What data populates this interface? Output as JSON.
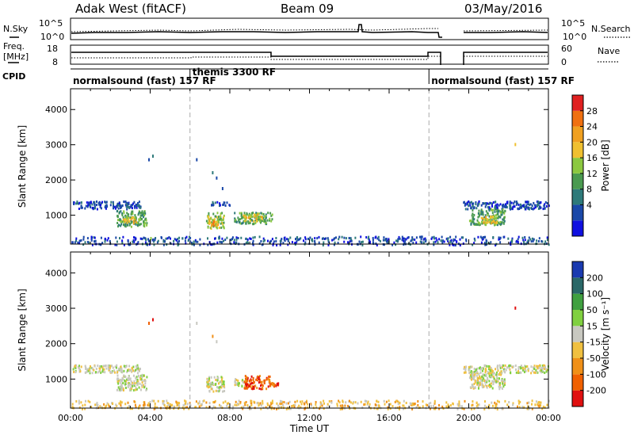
{
  "header": {
    "radar": "Adak West (fitACF)",
    "beam": "Beam 09",
    "date": "03/May/2016"
  },
  "top_panels": {
    "nsky_label": "N.Sky",
    "nsky_ticks": [
      "10^5",
      "10^0"
    ],
    "nsearch_label": "N.Search",
    "nsearch_ticks": [
      "10^5",
      "10^0"
    ],
    "freq_label_1": "Freq.",
    "freq_label_2": "[MHz]",
    "freq_ticks": [
      "18",
      "8"
    ],
    "nave_label": "Nave",
    "nave_ticks": [
      "60",
      "0"
    ],
    "cpid_label": "CPID",
    "cpid_modes": [
      {
        "label": "normalsound (fast) 157 RF",
        "start_h": 0,
        "end_h": 6
      },
      {
        "label": "themis 3300 RF",
        "start_h": 6,
        "end_h": 18
      },
      {
        "label": "normalsound (fast) 157 RF",
        "start_h": 18,
        "end_h": 24
      }
    ]
  },
  "chart_data": [
    {
      "type": "heatmap",
      "name": "power",
      "ylabel": "Slant Range [km]",
      "xlabel": "",
      "xlim": [
        0,
        24
      ],
      "ylim": [
        180,
        4590
      ],
      "y_ticks": [
        1000,
        2000,
        3000,
        4000
      ],
      "colorbar_label": "Power [dB]",
      "colorbar_ticks": [
        "4",
        "8",
        "12",
        "16",
        "20",
        "24",
        "28"
      ],
      "colorbar_colors": [
        "#1010e0",
        "#1a48a8",
        "#2e7a7a",
        "#4a9a50",
        "#8cc840",
        "#f0c030",
        "#f0a020",
        "#f07010",
        "#e02020"
      ],
      "blobs": [
        {
          "x0": 0.1,
          "x1": 3.5,
          "y0": 1200,
          "y1": 1420,
          "level": 1
        },
        {
          "x0": 2.3,
          "x1": 3.8,
          "y0": 700,
          "y1": 1150,
          "level": 3
        },
        {
          "x0": 2.6,
          "x1": 3.3,
          "y0": 800,
          "y1": 1000,
          "level": 5
        },
        {
          "x0": 6.8,
          "x1": 7.7,
          "y0": 650,
          "y1": 1100,
          "level": 4
        },
        {
          "x0": 6.9,
          "x1": 7.4,
          "y0": 720,
          "y1": 900,
          "level": 6
        },
        {
          "x0": 8.2,
          "x1": 10.1,
          "y0": 780,
          "y1": 1100,
          "level": 3
        },
        {
          "x0": 8.6,
          "x1": 9.6,
          "y0": 850,
          "y1": 1050,
          "level": 5
        },
        {
          "x0": 7.0,
          "x1": 8.0,
          "y0": 1300,
          "y1": 1400,
          "level": 1
        },
        {
          "x0": 19.7,
          "x1": 24,
          "y0": 1200,
          "y1": 1420,
          "level": 1
        },
        {
          "x0": 20.0,
          "x1": 21.8,
          "y0": 750,
          "y1": 1200,
          "level": 3
        },
        {
          "x0": 20.6,
          "x1": 21.4,
          "y0": 800,
          "y1": 1000,
          "level": 5
        },
        {
          "x0": 0,
          "x1": 24,
          "y0": 180,
          "y1": 420,
          "level": 1
        }
      ],
      "sparse_points": [
        {
          "x": 3.9,
          "y": 2620,
          "level": 1
        },
        {
          "x": 4.1,
          "y": 2720,
          "level": 2
        },
        {
          "x": 6.3,
          "y": 2620,
          "level": 1
        },
        {
          "x": 7.1,
          "y": 2250,
          "level": 2
        },
        {
          "x": 7.3,
          "y": 2100,
          "level": 1
        },
        {
          "x": 7.6,
          "y": 1800,
          "level": 1
        },
        {
          "x": 22.3,
          "y": 3050,
          "level": 5
        },
        {
          "x": 4.0,
          "y": 380,
          "level": 4
        }
      ]
    },
    {
      "type": "heatmap",
      "name": "velocity",
      "ylabel": "Slant Range [km]",
      "xlabel": "Time UT",
      "xlim": [
        0,
        24
      ],
      "ylim": [
        180,
        4590
      ],
      "x_ticks": [
        "00:00",
        "04:00",
        "08:00",
        "12:00",
        "16:00",
        "20:00",
        "00:00"
      ],
      "y_ticks": [
        1000,
        2000,
        3000,
        4000
      ],
      "colorbar_label": "Velocity [m s⁻¹]",
      "colorbar_ticks": [
        "200",
        "100",
        "50",
        "15",
        "-15",
        "-50",
        "-100",
        "-200"
      ],
      "colorbar_colors": [
        "#e01010",
        "#f06000",
        "#f09018",
        "#f0c040",
        "#c8c8c0",
        "#80d040",
        "#40a040",
        "#2a6868",
        "#1a3ab0"
      ],
      "blobs": [
        {
          "x0": 0.1,
          "x1": 3.5,
          "y0": 1200,
          "y1": 1420,
          "level": 4
        },
        {
          "x0": 2.3,
          "x1": 3.8,
          "y0": 700,
          "y1": 1150,
          "level": 4
        },
        {
          "x0": 6.8,
          "x1": 7.7,
          "y0": 650,
          "y1": 1100,
          "level": 4
        },
        {
          "x0": 8.2,
          "x1": 8.8,
          "y0": 800,
          "y1": 1050,
          "level": 4
        },
        {
          "x0": 8.7,
          "x1": 10.0,
          "y0": 750,
          "y1": 1120,
          "level": 1
        },
        {
          "x0": 9.9,
          "x1": 10.4,
          "y0": 820,
          "y1": 920,
          "level": 1
        },
        {
          "x0": 19.7,
          "x1": 24,
          "y0": 1200,
          "y1": 1420,
          "level": 4
        },
        {
          "x0": 20.0,
          "x1": 21.8,
          "y0": 750,
          "y1": 1200,
          "level": 4
        },
        {
          "x0": 0,
          "x1": 24,
          "y0": 180,
          "y1": 420,
          "level": 3
        }
      ],
      "sparse_points": [
        {
          "x": 3.9,
          "y": 2620,
          "level": 1
        },
        {
          "x": 4.1,
          "y": 2720,
          "level": 0
        },
        {
          "x": 7.1,
          "y": 2250,
          "level": 2
        },
        {
          "x": 7.3,
          "y": 2100,
          "level": 4
        },
        {
          "x": 22.3,
          "y": 3050,
          "level": 0
        },
        {
          "x": 6.3,
          "y": 2620,
          "level": 4
        }
      ]
    }
  ]
}
